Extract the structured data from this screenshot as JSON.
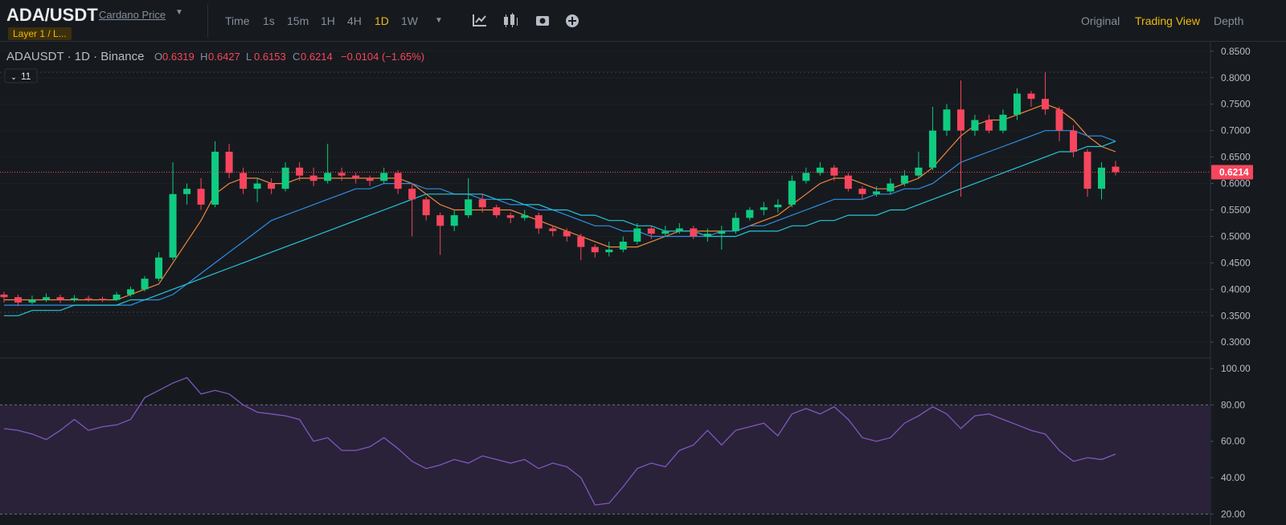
{
  "header": {
    "pair": "ADA/USDT",
    "name": "Cardano Price",
    "tag": "Layer 1 / L..."
  },
  "toolbar": {
    "time": "Time",
    "intervals": [
      "1s",
      "15m",
      "1H",
      "4H",
      "1D",
      "1W"
    ],
    "active": "1D",
    "views": [
      "Original",
      "Trading View",
      "Depth"
    ],
    "active_view": "Trading View"
  },
  "chart_data": [
    {
      "type": "candlestick",
      "title": "ADAUSDT · 1D · Binance",
      "ohlc_labels": [
        "O",
        "H",
        "L",
        "C"
      ],
      "change": "−0.0104 (−1.65%)",
      "indicator_count": "11",
      "up_color": "#0ecb81",
      "down_color": "#f6465d",
      "candles": [
        [
          0.39,
          0.395,
          0.375,
          0.385
        ],
        [
          0.385,
          0.39,
          0.368,
          0.375
        ],
        [
          0.375,
          0.388,
          0.372,
          0.38
        ],
        [
          0.38,
          0.392,
          0.376,
          0.385
        ],
        [
          0.385,
          0.39,
          0.374,
          0.38
        ],
        [
          0.38,
          0.389,
          0.376,
          0.383
        ],
        [
          0.383,
          0.388,
          0.377,
          0.382
        ],
        [
          0.382,
          0.386,
          0.376,
          0.38
        ],
        [
          0.38,
          0.395,
          0.378,
          0.39
        ],
        [
          0.39,
          0.405,
          0.386,
          0.4
        ],
        [
          0.4,
          0.425,
          0.396,
          0.42
        ],
        [
          0.42,
          0.47,
          0.415,
          0.46
        ],
        [
          0.46,
          0.64,
          0.455,
          0.58
        ],
        [
          0.58,
          0.6,
          0.56,
          0.59
        ],
        [
          0.59,
          0.61,
          0.55,
          0.56
        ],
        [
          0.56,
          0.68,
          0.555,
          0.66
        ],
        [
          0.66,
          0.675,
          0.61,
          0.62
        ],
        [
          0.62,
          0.63,
          0.58,
          0.59
        ],
        [
          0.59,
          0.61,
          0.565,
          0.6
        ],
        [
          0.6,
          0.61,
          0.58,
          0.59
        ],
        [
          0.59,
          0.64,
          0.585,
          0.63
        ],
        [
          0.63,
          0.64,
          0.605,
          0.615
        ],
        [
          0.615,
          0.63,
          0.595,
          0.605
        ],
        [
          0.605,
          0.675,
          0.6,
          0.62
        ],
        [
          0.62,
          0.63,
          0.605,
          0.615
        ],
        [
          0.615,
          0.62,
          0.6,
          0.61
        ],
        [
          0.61,
          0.615,
          0.595,
          0.605
        ],
        [
          0.605,
          0.63,
          0.6,
          0.62
        ],
        [
          0.62,
          0.625,
          0.58,
          0.59
        ],
        [
          0.59,
          0.6,
          0.5,
          0.57
        ],
        [
          0.57,
          0.575,
          0.53,
          0.54
        ],
        [
          0.54,
          0.545,
          0.465,
          0.52
        ],
        [
          0.52,
          0.55,
          0.51,
          0.54
        ],
        [
          0.54,
          0.61,
          0.535,
          0.57
        ],
        [
          0.57,
          0.58,
          0.545,
          0.555
        ],
        [
          0.555,
          0.56,
          0.535,
          0.54
        ],
        [
          0.54,
          0.545,
          0.525,
          0.535
        ],
        [
          0.535,
          0.55,
          0.53,
          0.54
        ],
        [
          0.54,
          0.545,
          0.505,
          0.515
        ],
        [
          0.515,
          0.52,
          0.5,
          0.51
        ],
        [
          0.51,
          0.515,
          0.49,
          0.5
        ],
        [
          0.5,
          0.505,
          0.455,
          0.48
        ],
        [
          0.48,
          0.485,
          0.46,
          0.47
        ],
        [
          0.47,
          0.49,
          0.462,
          0.475
        ],
        [
          0.475,
          0.5,
          0.47,
          0.49
        ],
        [
          0.49,
          0.525,
          0.485,
          0.515
        ],
        [
          0.515,
          0.52,
          0.495,
          0.505
        ],
        [
          0.505,
          0.52,
          0.5,
          0.51
        ],
        [
          0.51,
          0.525,
          0.505,
          0.515
        ],
        [
          0.515,
          0.52,
          0.495,
          0.5
        ],
        [
          0.5,
          0.515,
          0.49,
          0.505
        ],
        [
          0.505,
          0.52,
          0.475,
          0.51
        ],
        [
          0.51,
          0.545,
          0.505,
          0.535
        ],
        [
          0.535,
          0.555,
          0.53,
          0.55
        ],
        [
          0.55,
          0.565,
          0.54,
          0.555
        ],
        [
          0.555,
          0.57,
          0.545,
          0.56
        ],
        [
          0.56,
          0.615,
          0.555,
          0.605
        ],
        [
          0.605,
          0.63,
          0.6,
          0.62
        ],
        [
          0.62,
          0.64,
          0.615,
          0.63
        ],
        [
          0.63,
          0.635,
          0.605,
          0.615
        ],
        [
          0.615,
          0.62,
          0.585,
          0.59
        ],
        [
          0.59,
          0.595,
          0.57,
          0.58
        ],
        [
          0.58,
          0.595,
          0.575,
          0.585
        ],
        [
          0.585,
          0.61,
          0.58,
          0.6
        ],
        [
          0.6,
          0.625,
          0.595,
          0.615
        ],
        [
          0.615,
          0.66,
          0.61,
          0.63
        ],
        [
          0.63,
          0.745,
          0.625,
          0.7
        ],
        [
          0.7,
          0.75,
          0.69,
          0.74
        ],
        [
          0.74,
          0.795,
          0.575,
          0.7
        ],
        [
          0.7,
          0.73,
          0.69,
          0.72
        ],
        [
          0.72,
          0.73,
          0.695,
          0.7
        ],
        [
          0.7,
          0.74,
          0.695,
          0.73
        ],
        [
          0.73,
          0.78,
          0.72,
          0.77
        ],
        [
          0.77,
          0.775,
          0.745,
          0.76
        ],
        [
          0.76,
          0.81,
          0.73,
          0.74
        ],
        [
          0.74,
          0.745,
          0.68,
          0.7
        ],
        [
          0.7,
          0.71,
          0.65,
          0.66
        ],
        [
          0.66,
          0.665,
          0.575,
          0.59
        ],
        [
          0.59,
          0.64,
          0.57,
          0.63
        ],
        [
          0.6319,
          0.6427,
          0.6153,
          0.6214
        ]
      ],
      "lines": [
        {
          "color": "#f0883e",
          "values": [
            0.38,
            0.38,
            0.38,
            0.38,
            0.38,
            0.38,
            0.38,
            0.38,
            0.38,
            0.39,
            0.4,
            0.41,
            0.45,
            0.49,
            0.53,
            0.58,
            0.6,
            0.61,
            0.61,
            0.6,
            0.6,
            0.61,
            0.61,
            0.61,
            0.61,
            0.61,
            0.61,
            0.61,
            0.61,
            0.6,
            0.58,
            0.56,
            0.55,
            0.55,
            0.55,
            0.55,
            0.55,
            0.54,
            0.53,
            0.52,
            0.51,
            0.5,
            0.49,
            0.48,
            0.48,
            0.48,
            0.49,
            0.5,
            0.51,
            0.51,
            0.51,
            0.51,
            0.51,
            0.52,
            0.53,
            0.54,
            0.56,
            0.58,
            0.6,
            0.61,
            0.61,
            0.6,
            0.59,
            0.59,
            0.6,
            0.61,
            0.63,
            0.66,
            0.69,
            0.71,
            0.72,
            0.72,
            0.73,
            0.74,
            0.75,
            0.74,
            0.72,
            0.69,
            0.67,
            0.66
          ]
        },
        {
          "color": "#2f8ee6",
          "values": [
            0.37,
            0.37,
            0.37,
            0.37,
            0.37,
            0.37,
            0.37,
            0.37,
            0.37,
            0.37,
            0.38,
            0.38,
            0.39,
            0.41,
            0.43,
            0.45,
            0.47,
            0.49,
            0.51,
            0.53,
            0.54,
            0.55,
            0.56,
            0.57,
            0.58,
            0.59,
            0.59,
            0.6,
            0.6,
            0.6,
            0.59,
            0.59,
            0.58,
            0.58,
            0.57,
            0.57,
            0.56,
            0.56,
            0.55,
            0.55,
            0.54,
            0.53,
            0.52,
            0.52,
            0.51,
            0.51,
            0.5,
            0.5,
            0.5,
            0.5,
            0.5,
            0.51,
            0.51,
            0.52,
            0.52,
            0.53,
            0.54,
            0.55,
            0.56,
            0.57,
            0.57,
            0.57,
            0.58,
            0.58,
            0.59,
            0.59,
            0.6,
            0.62,
            0.64,
            0.65,
            0.66,
            0.67,
            0.68,
            0.69,
            0.7,
            0.7,
            0.7,
            0.69,
            0.69,
            0.68
          ]
        },
        {
          "color": "#26c6da",
          "values": [
            0.35,
            0.35,
            0.36,
            0.36,
            0.36,
            0.37,
            0.37,
            0.37,
            0.37,
            0.38,
            0.38,
            0.39,
            0.4,
            0.41,
            0.42,
            0.43,
            0.44,
            0.45,
            0.46,
            0.47,
            0.48,
            0.49,
            0.5,
            0.51,
            0.52,
            0.53,
            0.54,
            0.55,
            0.56,
            0.57,
            0.58,
            0.58,
            0.58,
            0.58,
            0.58,
            0.57,
            0.57,
            0.56,
            0.56,
            0.55,
            0.55,
            0.54,
            0.54,
            0.53,
            0.53,
            0.52,
            0.52,
            0.51,
            0.51,
            0.51,
            0.5,
            0.5,
            0.5,
            0.51,
            0.51,
            0.51,
            0.52,
            0.52,
            0.53,
            0.53,
            0.54,
            0.54,
            0.54,
            0.55,
            0.55,
            0.56,
            0.57,
            0.58,
            0.59,
            0.6,
            0.61,
            0.62,
            0.63,
            0.64,
            0.65,
            0.66,
            0.66,
            0.67,
            0.67,
            0.68
          ]
        }
      ],
      "ylim": [
        0.27,
        0.868
      ],
      "yticks": [
        {
          "value": 0.3,
          "label": "0.3000"
        },
        {
          "value": 0.35,
          "label": "0.3500"
        },
        {
          "value": 0.4,
          "label": "0.4000"
        },
        {
          "value": 0.45,
          "label": "0.4500"
        },
        {
          "value": 0.5,
          "label": "0.5000"
        },
        {
          "value": 0.55,
          "label": "0.5500"
        },
        {
          "value": 0.6,
          "label": "0.6000"
        },
        {
          "value": 0.65,
          "label": "0.6500"
        },
        {
          "value": 0.7,
          "label": "0.7000"
        },
        {
          "value": 0.75,
          "label": "0.7500"
        },
        {
          "value": 0.8,
          "label": "0.8000"
        },
        {
          "value": 0.85,
          "label": "0.8500"
        }
      ]
    },
    {
      "type": "line",
      "color": "#7e57c2",
      "band_color": "#2a2238",
      "values": [
        67,
        66,
        64,
        61,
        66,
        72,
        66,
        68,
        69,
        72,
        84,
        88,
        92,
        95,
        86,
        88,
        86,
        80,
        76,
        75,
        74,
        72,
        60,
        62,
        55,
        55,
        57,
        62,
        56,
        49,
        45,
        47,
        50,
        48,
        52,
        50,
        48,
        50,
        45,
        48,
        46,
        40,
        25,
        26,
        35,
        45,
        48,
        46,
        55,
        58,
        66,
        58,
        66,
        68,
        70,
        63,
        75,
        78,
        75,
        79,
        72,
        62,
        60,
        62,
        70,
        74,
        79,
        75,
        67,
        74,
        75,
        72,
        69,
        66,
        64,
        55,
        49,
        51,
        50,
        53
      ],
      "band": [
        20,
        80
      ],
      "ylim": [
        14,
        104
      ],
      "yticks": [
        {
          "value": 20,
          "label": "20.00"
        },
        {
          "value": 40,
          "label": "40.00"
        },
        {
          "value": 60,
          "label": "60.00"
        },
        {
          "value": 80,
          "label": "80.00"
        },
        {
          "value": 100,
          "label": "100.00"
        }
      ]
    }
  ]
}
